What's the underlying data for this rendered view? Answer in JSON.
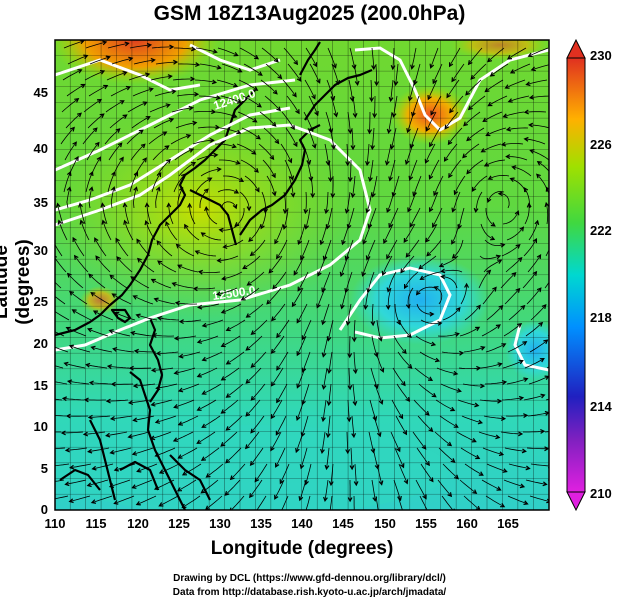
{
  "title": "GSM 18Z13Aug2025 (200.0hPa)",
  "x_axis": {
    "label": "Longitude (degrees)",
    "ticks": [
      "110",
      "115",
      "120",
      "125",
      "130",
      "135",
      "140",
      "145",
      "150",
      "155",
      "160",
      "165"
    ]
  },
  "y_axis": {
    "label": "Latitude  (degrees)",
    "ticks": [
      "0",
      "5",
      "10",
      "15",
      "20",
      "25",
      "30",
      "35",
      "40",
      "45"
    ]
  },
  "colorbar": {
    "ticks": [
      "210",
      "214",
      "218",
      "222",
      "226",
      "230"
    ],
    "colors": [
      "#e020e0",
      "#2020c0",
      "#00c8ff",
      "#40d840",
      "#a0e000",
      "#ffb000",
      "#e03020"
    ]
  },
  "contour_labels": [
    "12500.0",
    "12400.0"
  ],
  "credits": {
    "line1": "Drawing by DCL (https://www.gfd-dennou.org/library/dcl/)",
    "line2": "Data from http://database.rish.kyoto-u.ac.jp/arch/jmadata/"
  }
}
